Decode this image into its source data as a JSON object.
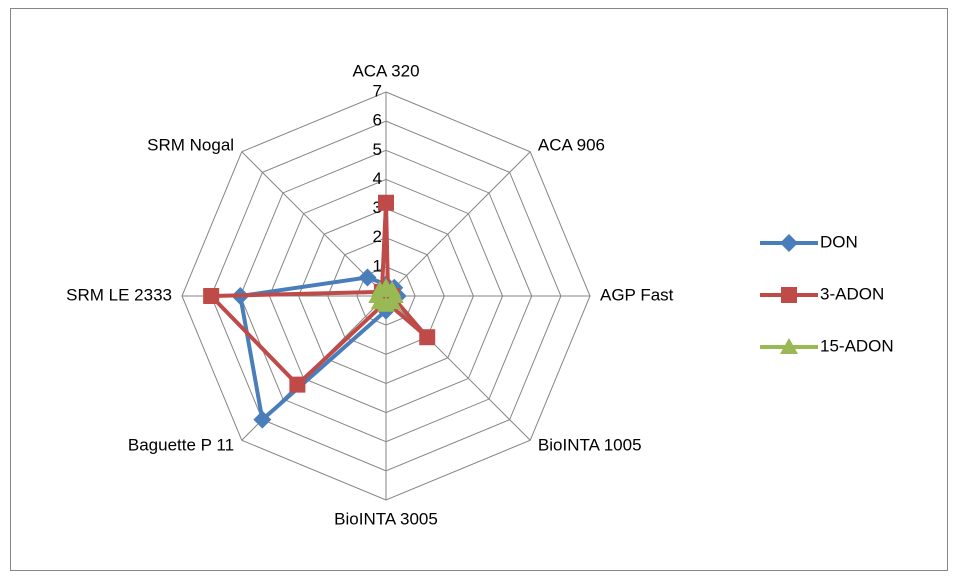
{
  "chart_data": {
    "type": "radar",
    "categories": [
      "ACA 320",
      "ACA 906",
      "AGP Fast",
      "BioINTA 1005",
      "BioINTA 3005",
      "Baguette P 11",
      "SRM LE 2333",
      "SRM Nogal"
    ],
    "series": [
      {
        "name": "DON",
        "color": "#4a7ebb",
        "marker": "diamond",
        "values": [
          0.4,
          0.4,
          0.4,
          0.2,
          0.5,
          6.0,
          5.0,
          0.9
        ]
      },
      {
        "name": "3-ADON",
        "color": "#be4b48",
        "marker": "square",
        "values": [
          3.2,
          0.1,
          0.2,
          2.0,
          0.2,
          4.3,
          6.0,
          0.2
        ]
      },
      {
        "name": "15-ADON",
        "color": "#98b954",
        "marker": "triangle",
        "values": [
          0.3,
          0.3,
          0.3,
          0.3,
          0.3,
          0.3,
          0.3,
          0.3
        ]
      }
    ],
    "ylim": [
      0,
      7
    ],
    "yticks": [
      0,
      1,
      2,
      3,
      4,
      5,
      6,
      7
    ],
    "grid": true,
    "legend": "right"
  }
}
